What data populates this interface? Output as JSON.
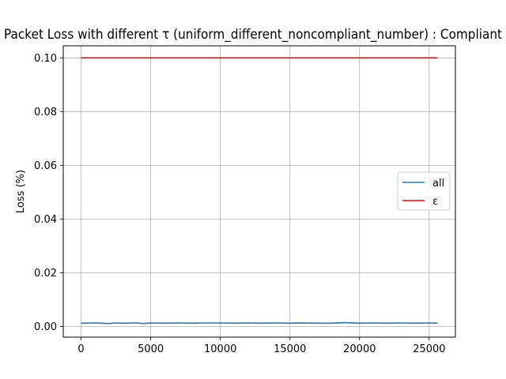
{
  "chart_data": {
    "type": "line",
    "title": "Packet Loss with different τ (uniform_different_noncompliant_number) : Compliant",
    "xlabel": "",
    "ylabel": "Loss (%)",
    "xlim": [
      -1280,
      26880
    ],
    "ylim": [
      -0.004,
      0.1045
    ],
    "x_ticks": [
      0,
      5000,
      10000,
      15000,
      20000,
      25000
    ],
    "y_ticks": [
      0.0,
      0.02,
      0.04,
      0.06,
      0.08,
      0.1
    ],
    "x_tick_labels": [
      "0",
      "5000",
      "10000",
      "15000",
      "20000",
      "25000"
    ],
    "y_tick_labels": [
      "0.00",
      "0.02",
      "0.04",
      "0.06",
      "0.08",
      "0.10"
    ],
    "grid": true,
    "legend": "center-right",
    "series": [
      {
        "name": "all",
        "color": "#1f77b4",
        "x": [
          0,
          1000,
          2000,
          2500,
          3000,
          4000,
          4500,
          5000,
          6000,
          7000,
          8000,
          9000,
          10000,
          11000,
          12000,
          13000,
          14000,
          15000,
          16000,
          17000,
          18000,
          19000,
          20000,
          21000,
          22000,
          23000,
          24000,
          25000,
          25600
        ],
        "y": [
          0.0012,
          0.0013,
          0.0011,
          0.0013,
          0.0012,
          0.0013,
          0.0011,
          0.0013,
          0.0012,
          0.0013,
          0.0012,
          0.0013,
          0.0013,
          0.0012,
          0.0013,
          0.0012,
          0.0013,
          0.0012,
          0.0013,
          0.0012,
          0.0012,
          0.0014,
          0.0012,
          0.0013,
          0.0012,
          0.0013,
          0.0012,
          0.0013,
          0.0012
        ]
      },
      {
        "name": "ε",
        "color": "#ff0000",
        "x": [
          0,
          25600
        ],
        "y": [
          0.1,
          0.1
        ]
      }
    ]
  }
}
